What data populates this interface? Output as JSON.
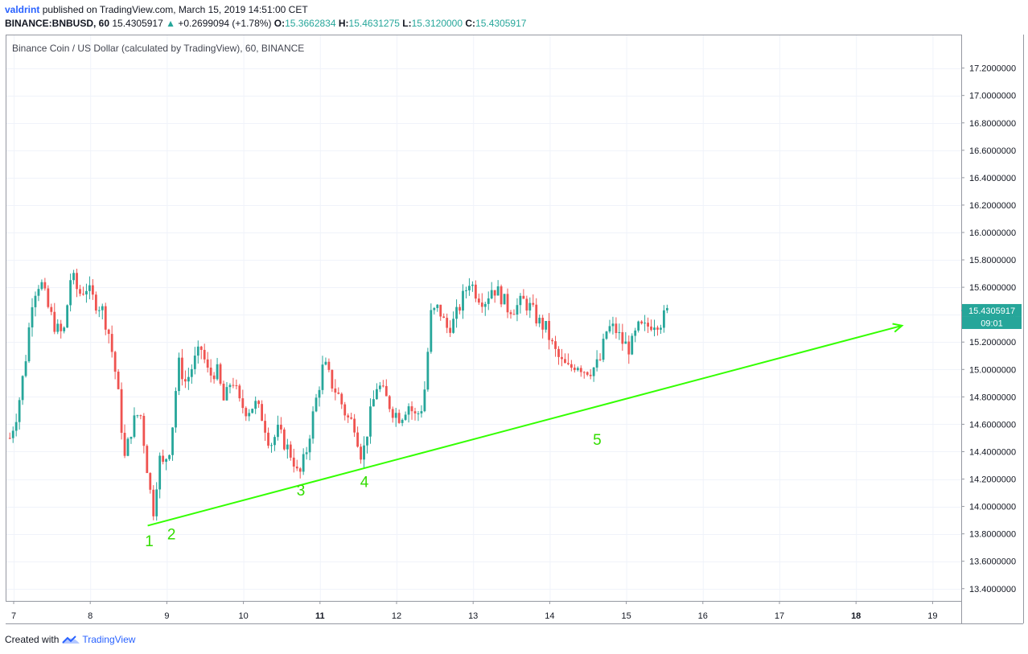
{
  "header": {
    "user": "valdrint",
    "published_text": "published on TradingView.com, March 15, 2019 14:51:00 CET",
    "symbol_label": "BINANCE:BNBUSD, 60",
    "last": "15.4305917",
    "change_arrow": "▲",
    "change": "+0.2699094 (+1.78%)",
    "o_label": "O:",
    "o_value": "15.3662834",
    "h_label": "H:",
    "h_value": "15.4631275",
    "l_label": "L:",
    "l_value": "15.3120000",
    "c_label": "C:",
    "c_value": "15.4305917"
  },
  "footer": {
    "created_with": "Created with",
    "brand": "TradingView"
  },
  "colors": {
    "up": "#26a69a",
    "down": "#ef5350",
    "trendline": "#33ff00",
    "annotation": "#33dd00",
    "price_tag": "#26a69a"
  },
  "chart_data": {
    "type": "candlestick",
    "title": "Binance Coin / US Dollar (calculated by TradingView), 60, BINANCE",
    "xlabel": "",
    "ylabel": "",
    "ylim": [
      13.3,
      17.28
    ],
    "x_range": [
      6.9,
      19.4
    ],
    "x_ticks": [
      "7",
      "8",
      "9",
      "10",
      "11",
      "12",
      "13",
      "14",
      "15",
      "16",
      "17",
      "18",
      "19"
    ],
    "x_ticks_bold": [
      "11",
      "18"
    ],
    "y_ticks": [
      "13.4000000",
      "13.6000000",
      "13.8000000",
      "14.0000000",
      "14.2000000",
      "14.4000000",
      "14.6000000",
      "14.8000000",
      "15.0000000",
      "15.2000000",
      "15.4000000",
      "15.6000000",
      "15.8000000",
      "16.0000000",
      "16.2000000",
      "16.4000000",
      "16.6000000",
      "16.8000000",
      "17.0000000",
      "17.2000000"
    ],
    "grid": true,
    "price_label": "15.4305917",
    "countdown_label": "09:01",
    "anchors": [
      [
        6.95,
        14.5
      ],
      [
        7.05,
        14.7
      ],
      [
        7.15,
        15.05
      ],
      [
        7.25,
        15.55
      ],
      [
        7.35,
        15.65
      ],
      [
        7.45,
        15.45
      ],
      [
        7.55,
        15.3
      ],
      [
        7.65,
        15.25
      ],
      [
        7.75,
        15.7
      ],
      [
        7.85,
        15.55
      ],
      [
        7.95,
        15.6
      ],
      [
        8.05,
        15.5
      ],
      [
        8.15,
        15.45
      ],
      [
        8.25,
        15.25
      ],
      [
        8.35,
        14.9
      ],
      [
        8.45,
        14.35
      ],
      [
        8.55,
        14.6
      ],
      [
        8.65,
        14.7
      ],
      [
        8.75,
        14.25
      ],
      [
        8.82,
        13.95
      ],
      [
        8.9,
        14.35
      ],
      [
        8.95,
        14.3
      ],
      [
        9.05,
        14.45
      ],
      [
        9.15,
        15.05
      ],
      [
        9.25,
        14.9
      ],
      [
        9.35,
        15.05
      ],
      [
        9.45,
        15.15
      ],
      [
        9.55,
        14.95
      ],
      [
        9.65,
        15.0
      ],
      [
        9.75,
        14.75
      ],
      [
        9.85,
        14.95
      ],
      [
        9.95,
        14.75
      ],
      [
        10.05,
        14.7
      ],
      [
        10.15,
        14.75
      ],
      [
        10.25,
        14.65
      ],
      [
        10.35,
        14.45
      ],
      [
        10.45,
        14.55
      ],
      [
        10.55,
        14.45
      ],
      [
        10.65,
        14.35
      ],
      [
        10.72,
        14.2
      ],
      [
        10.82,
        14.4
      ],
      [
        10.92,
        14.7
      ],
      [
        11.05,
        15.05
      ],
      [
        11.15,
        14.9
      ],
      [
        11.25,
        14.8
      ],
      [
        11.35,
        14.65
      ],
      [
        11.45,
        14.6
      ],
      [
        11.55,
        14.35
      ],
      [
        11.65,
        14.65
      ],
      [
        11.75,
        14.9
      ],
      [
        11.85,
        14.8
      ],
      [
        11.95,
        14.7
      ],
      [
        12.05,
        14.65
      ],
      [
        12.15,
        14.75
      ],
      [
        12.25,
        14.65
      ],
      [
        12.35,
        14.75
      ],
      [
        12.45,
        15.4
      ],
      [
        12.55,
        15.45
      ],
      [
        12.65,
        15.3
      ],
      [
        12.75,
        15.35
      ],
      [
        12.85,
        15.5
      ],
      [
        12.95,
        15.65
      ],
      [
        13.05,
        15.55
      ],
      [
        13.15,
        15.5
      ],
      [
        13.25,
        15.6
      ],
      [
        13.35,
        15.55
      ],
      [
        13.45,
        15.45
      ],
      [
        13.55,
        15.45
      ],
      [
        13.65,
        15.5
      ],
      [
        13.75,
        15.45
      ],
      [
        13.85,
        15.35
      ],
      [
        13.95,
        15.3
      ],
      [
        14.05,
        15.15
      ],
      [
        14.15,
        15.05
      ],
      [
        14.25,
        15.0
      ],
      [
        14.35,
        15.05
      ],
      [
        14.45,
        15.0
      ],
      [
        14.55,
        15.0
      ],
      [
        14.65,
        15.05
      ],
      [
        14.75,
        15.3
      ],
      [
        14.85,
        15.3
      ],
      [
        14.95,
        15.2
      ],
      [
        15.05,
        15.15
      ],
      [
        15.15,
        15.3
      ],
      [
        15.25,
        15.3
      ],
      [
        15.35,
        15.35
      ],
      [
        15.45,
        15.35
      ],
      [
        15.55,
        15.43
      ]
    ],
    "trendline": {
      "start": [
        8.75,
        13.86
      ],
      "end": [
        18.6,
        15.32
      ],
      "arrow": true
    },
    "annotations": [
      {
        "text": "1",
        "x": 8.77,
        "y": 13.71
      },
      {
        "text": "2",
        "x": 9.06,
        "y": 13.76
      },
      {
        "text": "3",
        "x": 10.75,
        "y": 14.08
      },
      {
        "text": "4",
        "x": 11.58,
        "y": 14.14
      },
      {
        "text": "5",
        "x": 14.62,
        "y": 14.45
      }
    ]
  }
}
